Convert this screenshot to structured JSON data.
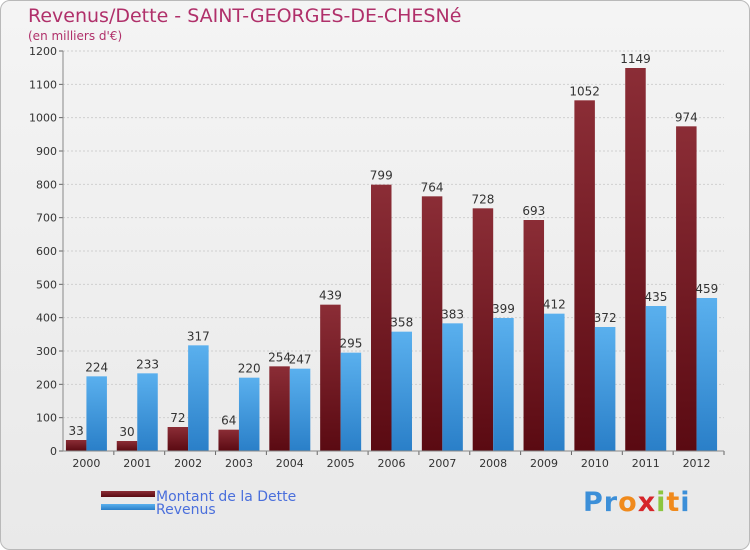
{
  "title": "Revenus/Dette - SAINT-GEORGES-DE-CHESNé",
  "subtitle": "(en milliers d'€)",
  "colors": {
    "debt_top": "#8b2d36",
    "debt_bottom": "#5a0a12",
    "revenue_top": "#5ab0ee",
    "revenue_bottom": "#2a7fc8",
    "title": "#b0306a",
    "axis_text": "#333333",
    "grid": "#cfcfcf"
  },
  "chart_data": {
    "type": "bar",
    "title": "Revenus/Dette - SAINT-GEORGES-DE-CHESNé",
    "subtitle": "(en milliers d'€)",
    "categories": [
      "2000",
      "2001",
      "2002",
      "2003",
      "2004",
      "2005",
      "2006",
      "2007",
      "2008",
      "2009",
      "2010",
      "2011",
      "2012"
    ],
    "series": [
      {
        "name": "Montant de la Dette",
        "values": [
          33,
          30,
          72,
          64,
          254,
          439,
          799,
          764,
          728,
          693,
          1052,
          1149,
          974
        ]
      },
      {
        "name": "Revenus",
        "values": [
          224,
          233,
          317,
          220,
          247,
          295,
          358,
          383,
          399,
          412,
          372,
          435,
          459
        ]
      }
    ],
    "y_ticks": [
      0,
      100,
      200,
      300,
      400,
      500,
      600,
      700,
      800,
      900,
      1000,
      1100,
      1200
    ],
    "ylim": [
      0,
      1200
    ],
    "grid": true,
    "legend_position": "bottom-left"
  },
  "legend": {
    "debt_label": "Montant de la Dette",
    "revenue_label": "Revenus"
  },
  "logo": {
    "letters": [
      "P",
      "r",
      "o",
      "x",
      "i",
      "t",
      "i"
    ],
    "letter_colors": [
      "#3c8fd8",
      "#3c8fd8",
      "#f08a1c",
      "#d6252a",
      "#8cc63f",
      "#f08a1c",
      "#3c8fd8"
    ]
  }
}
